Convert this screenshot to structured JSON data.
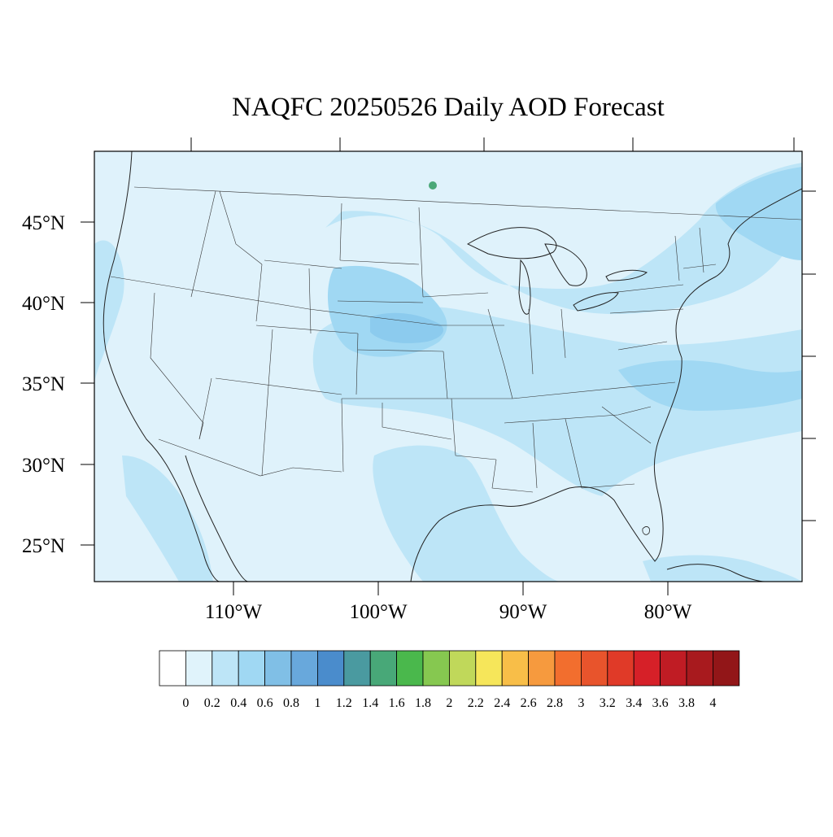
{
  "map": {
    "title": "NAQFC 20250526 Daily AOD Forecast",
    "lat_labels": [
      "45°N",
      "40°N",
      "35°N",
      "30°N",
      "25°N"
    ],
    "lon_labels": [
      "110°W",
      "100°W",
      "90°W",
      "80°W"
    ],
    "region": "Continental United States",
    "ocean_value_color": "#dff2fb"
  },
  "colorbar": {
    "labels": [
      "0",
      "0.2",
      "0.4",
      "0.6",
      "0.8",
      "1",
      "1.2",
      "1.4",
      "1.6",
      "1.8",
      "2",
      "2.2",
      "2.4",
      "2.6",
      "2.8",
      "3",
      "3.2",
      "3.4",
      "3.6",
      "3.8",
      "4"
    ],
    "colors": [
      "#ffffff",
      "#e0f3fb",
      "#bde5f7",
      "#a0d8f3",
      "#80bfe6",
      "#68a8dc",
      "#4a8ccc",
      "#4a9aa0",
      "#48a878",
      "#4ab84c",
      "#86c850",
      "#c0d85a",
      "#f6e65a",
      "#f8be48",
      "#f69a3e",
      "#f26e2e",
      "#e8542c",
      "#e03a28",
      "#d62028",
      "#c01c24",
      "#a81a1e",
      "#921618"
    ]
  }
}
